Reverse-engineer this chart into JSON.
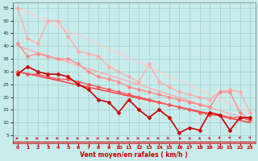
{
  "background_color": "#c8ecec",
  "grid_color": "#aad4d4",
  "xlabel": "Vent moyen/en rafales ( km/h )",
  "xlim": [
    -0.5,
    23.5
  ],
  "ylim": [
    2,
    57
  ],
  "yticks": [
    5,
    10,
    15,
    20,
    25,
    30,
    35,
    40,
    45,
    50,
    55
  ],
  "xticks": [
    0,
    1,
    2,
    3,
    4,
    5,
    6,
    7,
    8,
    9,
    10,
    11,
    12,
    13,
    14,
    15,
    16,
    17,
    18,
    19,
    20,
    21,
    22,
    23
  ],
  "series": [
    {
      "x": [
        0,
        1,
        2,
        3,
        4,
        5,
        6,
        7,
        8,
        9,
        10,
        11,
        12,
        13,
        14,
        15,
        16,
        17,
        18,
        19,
        20,
        21,
        22,
        23
      ],
      "y": [
        55,
        43,
        41,
        50,
        50,
        44,
        38,
        37,
        36,
        32,
        30,
        28,
        26,
        33,
        26,
        24,
        22,
        21,
        20,
        19,
        22,
        23,
        22,
        14
      ],
      "color": "#ffaaaa",
      "lw": 1.0,
      "marker": "D",
      "ms": 2.0,
      "zorder": 3
    },
    {
      "x": [
        0,
        23
      ],
      "y": [
        55,
        14
      ],
      "color": "#ffcccc",
      "lw": 1.0,
      "marker": null,
      "ms": 0,
      "zorder": 1
    },
    {
      "x": [
        0,
        23
      ],
      "y": [
        40,
        11
      ],
      "color": "#ffaaaa",
      "lw": 1.0,
      "marker": null,
      "ms": 0,
      "zorder": 1
    },
    {
      "x": [
        0,
        1,
        2,
        3,
        4,
        5,
        6,
        7,
        8,
        9,
        10,
        11,
        12,
        13,
        14,
        15,
        16,
        17,
        18,
        19,
        20,
        21,
        22,
        23
      ],
      "y": [
        41,
        36,
        37,
        36,
        35,
        35,
        33,
        30,
        28,
        27,
        26,
        24,
        23,
        22,
        21,
        20,
        19,
        18,
        17,
        16,
        22,
        22,
        14,
        11
      ],
      "color": "#ff8888",
      "lw": 1.0,
      "marker": "D",
      "ms": 2.0,
      "zorder": 3
    },
    {
      "x": [
        0,
        1,
        2,
        3,
        4,
        5,
        6,
        7,
        8,
        9,
        10,
        11,
        12,
        13,
        14,
        15,
        16,
        17,
        18,
        19,
        20,
        21,
        22,
        23
      ],
      "y": [
        29,
        32,
        30,
        29,
        29,
        28,
        25,
        23,
        19,
        18,
        14,
        19,
        15,
        12,
        15,
        12,
        6,
        8,
        7,
        14,
        13,
        7,
        12,
        12
      ],
      "color": "#cc0000",
      "lw": 1.2,
      "marker": "D",
      "ms": 2.0,
      "zorder": 5
    },
    {
      "x": [
        0,
        23
      ],
      "y": [
        30,
        10
      ],
      "color": "#ff3333",
      "lw": 1.0,
      "marker": null,
      "ms": 0,
      "zorder": 2
    },
    {
      "x": [
        0,
        1,
        2,
        3,
        4,
        5,
        6,
        7,
        8,
        9,
        10,
        11,
        12,
        13,
        14,
        15,
        16,
        17,
        18,
        19,
        20,
        21,
        22,
        23
      ],
      "y": [
        30,
        29,
        29,
        28,
        27,
        27,
        26,
        25,
        24,
        23,
        22,
        21,
        20,
        19,
        18,
        17,
        16,
        15,
        14,
        13,
        13,
        12,
        12,
        11
      ],
      "color": "#ff5555",
      "lw": 1.0,
      "marker": "D",
      "ms": 2.0,
      "zorder": 4
    }
  ],
  "arrow_color": "#cc0000",
  "arrow_angles": [
    0,
    0,
    0,
    0,
    0,
    0,
    0,
    0,
    0,
    0,
    5,
    10,
    15,
    20,
    25,
    30,
    40,
    50,
    60,
    70,
    80,
    85,
    85,
    85
  ]
}
